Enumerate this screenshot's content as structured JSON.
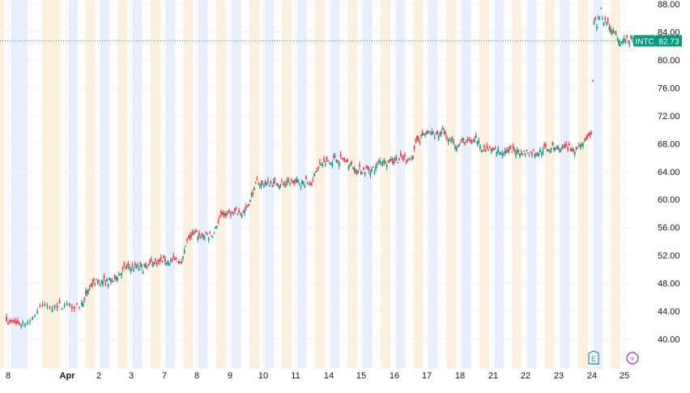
{
  "chart_data": {
    "type": "candlestick",
    "symbol": "INTC",
    "last_price": "82.73",
    "colors": {
      "up": "#089981",
      "down": "#f23645",
      "premarket_band": "#fdf0dc",
      "afterhours_band": "#e8eefd",
      "grid": "#f0f3fa",
      "price_line": "#089981",
      "symbol_badge": "#089981"
    },
    "y_axis": {
      "ticks": [
        "88.00",
        "84.00",
        "80.00",
        "76.00",
        "72.00",
        "68.00",
        "64.00",
        "60.00",
        "56.00",
        "52.00",
        "48.00",
        "44.00",
        "40.00"
      ],
      "range": [
        36.5,
        89
      ]
    },
    "x_axis": {
      "labels": [
        "8",
        "Apr",
        "2",
        "3",
        "7",
        "8",
        "9",
        "10",
        "11",
        "14",
        "15",
        "16",
        "17",
        "18",
        "21",
        "22",
        "23",
        "24",
        "25"
      ]
    },
    "sessions": [
      {
        "label": "8",
        "close": 42.2
      },
      {
        "label": "Apr",
        "close": 44.9
      },
      {
        "label": "2",
        "close": 48.3
      },
      {
        "label": "3",
        "close": 50.2
      },
      {
        "label": "7",
        "close": 51.2
      },
      {
        "label": "8",
        "close": 54.8
      },
      {
        "label": "9",
        "close": 58.1
      },
      {
        "label": "10",
        "close": 62.3
      },
      {
        "label": "11",
        "close": 62.4
      },
      {
        "label": "14",
        "close": 65.8
      },
      {
        "label": "15",
        "close": 64.3
      },
      {
        "label": "16",
        "close": 65.9
      },
      {
        "label": "17",
        "close": 69.4
      },
      {
        "label": "18",
        "close": 68.2
      },
      {
        "label": "21",
        "close": 66.9
      },
      {
        "label": "22",
        "close": 66.8
      },
      {
        "label": "23",
        "close": 67.2
      },
      {
        "label": "24",
        "close": 85.2
      },
      {
        "label": "25",
        "close": 82.73
      }
    ],
    "events": [
      {
        "type": "earnings",
        "symbol": "E",
        "session": "24"
      },
      {
        "type": "dividend",
        "symbol": "⚡",
        "session": "25"
      }
    ],
    "grid": true
  }
}
